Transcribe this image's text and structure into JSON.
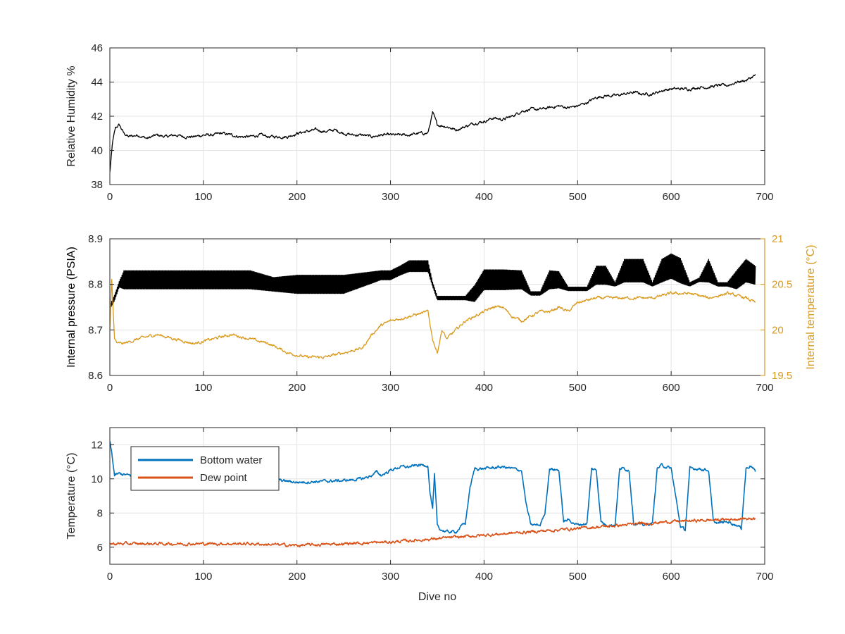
{
  "chart_data": [
    {
      "type": "line",
      "title": "",
      "xlabel": "",
      "ylabel": "Relative Humidity %",
      "xlim": [
        0,
        700
      ],
      "ylim": [
        38,
        46
      ],
      "xticks": [
        "0",
        "100",
        "200",
        "300",
        "400",
        "500",
        "600",
        "700"
      ],
      "yticks": [
        "38",
        "40",
        "42",
        "44",
        "46"
      ],
      "grid": true,
      "series": [
        {
          "color": "#000000",
          "x": [
            0,
            3,
            6,
            10,
            15,
            20,
            30,
            40,
            50,
            60,
            70,
            80,
            90,
            100,
            110,
            120,
            130,
            140,
            150,
            160,
            170,
            180,
            190,
            200,
            210,
            220,
            230,
            240,
            250,
            260,
            270,
            280,
            290,
            300,
            310,
            320,
            330,
            340,
            345,
            350,
            360,
            370,
            380,
            390,
            400,
            410,
            420,
            430,
            440,
            450,
            460,
            470,
            480,
            490,
            500,
            510,
            520,
            530,
            540,
            550,
            560,
            570,
            580,
            590,
            600,
            610,
            620,
            630,
            640,
            650,
            660,
            670,
            680,
            690
          ],
          "values": [
            38.7,
            40.5,
            41.3,
            41.5,
            41.0,
            40.8,
            40.9,
            40.7,
            40.9,
            40.8,
            40.9,
            40.8,
            40.8,
            40.9,
            40.9,
            41.0,
            40.9,
            40.8,
            40.8,
            40.9,
            40.8,
            40.8,
            40.8,
            41.0,
            41.1,
            41.2,
            41.1,
            41.2,
            41.0,
            40.9,
            40.9,
            40.8,
            40.9,
            40.9,
            40.9,
            40.9,
            41.0,
            41.0,
            42.2,
            41.5,
            41.4,
            41.2,
            41.4,
            41.6,
            41.7,
            41.9,
            41.8,
            42.0,
            42.3,
            42.4,
            42.4,
            42.5,
            42.6,
            42.5,
            42.6,
            42.8,
            43.1,
            43.2,
            43.2,
            43.3,
            43.4,
            43.3,
            43.3,
            43.5,
            43.6,
            43.6,
            43.6,
            43.7,
            43.7,
            43.8,
            43.8,
            44.0,
            44.1,
            44.4
          ]
        }
      ]
    },
    {
      "type": "line",
      "title": "",
      "xlabel": "",
      "ylabel": "Internal pressure (PSIA)",
      "y2label": "Internal temperature (°C)",
      "xlim": [
        0,
        700
      ],
      "ylim": [
        8.6,
        8.9
      ],
      "y2lim": [
        19.5,
        21
      ],
      "xticks": [
        "0",
        "100",
        "200",
        "300",
        "400",
        "500",
        "600",
        "700"
      ],
      "yticks": [
        "8.6",
        "8.7",
        "8.8",
        "8.9"
      ],
      "y2ticks": [
        "19.5",
        "20",
        "20.5",
        "21"
      ],
      "right_axis_color": "#D99A1E",
      "grid": true,
      "series": [
        {
          "axis": "left",
          "color": "#000000",
          "x": [
            0,
            5,
            10,
            15,
            20,
            50,
            100,
            150,
            175,
            200,
            250,
            270,
            290,
            300,
            310,
            320,
            340,
            345,
            350,
            360,
            380,
            390,
            400,
            420,
            440,
            450,
            460,
            470,
            480,
            490,
            500,
            510,
            520,
            530,
            540,
            550,
            560,
            570,
            580,
            590,
            600,
            610,
            620,
            630,
            640,
            650,
            660,
            670,
            680,
            690
          ],
          "values": [
            8.75,
            8.77,
            8.8,
            8.81,
            8.81,
            8.81,
            8.81,
            8.81,
            8.8,
            8.8,
            8.8,
            8.81,
            8.82,
            8.82,
            8.83,
            8.84,
            8.84,
            8.8,
            8.77,
            8.77,
            8.77,
            8.78,
            8.81,
            8.81,
            8.81,
            8.78,
            8.78,
            8.81,
            8.81,
            8.79,
            8.79,
            8.79,
            8.82,
            8.82,
            8.8,
            8.83,
            8.83,
            8.83,
            8.8,
            8.83,
            8.84,
            8.83,
            8.8,
            8.81,
            8.83,
            8.8,
            8.8,
            8.81,
            8.83,
            8.82
          ],
          "oscillation": [
            0.004,
            0.006,
            0.006,
            0.02,
            0.02,
            0.02,
            0.02,
            0.02,
            0.015,
            0.02,
            0.02,
            0.015,
            0.01,
            0.01,
            0.01,
            0.012,
            0.012,
            0.005,
            0.004,
            0.004,
            0.004,
            0.018,
            0.022,
            0.022,
            0.02,
            0.004,
            0.004,
            0.02,
            0.018,
            0.004,
            0.004,
            0.004,
            0.02,
            0.02,
            0.004,
            0.025,
            0.025,
            0.025,
            0.004,
            0.025,
            0.027,
            0.027,
            0.004,
            0.004,
            0.025,
            0.004,
            0.004,
            0.02,
            0.025,
            0.02
          ]
        },
        {
          "axis": "right",
          "color": "#D99A1E",
          "x": [
            0,
            2,
            5,
            8,
            15,
            30,
            50,
            70,
            90,
            110,
            130,
            150,
            170,
            180,
            190,
            210,
            230,
            250,
            270,
            280,
            290,
            300,
            320,
            340,
            345,
            350,
            355,
            360,
            370,
            380,
            390,
            400,
            410,
            420,
            430,
            440,
            450,
            460,
            470,
            480,
            490,
            500,
            520,
            540,
            560,
            580,
            600,
            620,
            640,
            660,
            680,
            690
          ],
          "values": [
            20.0,
            20.55,
            19.9,
            19.85,
            19.85,
            19.9,
            19.95,
            19.9,
            19.85,
            19.9,
            19.95,
            19.9,
            19.85,
            19.8,
            19.75,
            19.7,
            19.7,
            19.75,
            19.8,
            19.95,
            20.05,
            20.1,
            20.15,
            20.2,
            19.9,
            19.75,
            20.0,
            19.9,
            20.0,
            20.1,
            20.15,
            20.2,
            20.25,
            20.25,
            20.15,
            20.1,
            20.15,
            20.2,
            20.2,
            20.25,
            20.2,
            20.3,
            20.35,
            20.35,
            20.35,
            20.35,
            20.4,
            20.4,
            20.35,
            20.4,
            20.35,
            20.3
          ]
        }
      ]
    },
    {
      "type": "line",
      "title": "",
      "xlabel": "Dive no",
      "ylabel": "Temperature (°C)",
      "xlim": [
        0,
        700
      ],
      "ylim": [
        5,
        13
      ],
      "xticks": [
        "0",
        "100",
        "200",
        "300",
        "400",
        "500",
        "600",
        "700"
      ],
      "yticks": [
        "6",
        "8",
        "10",
        "12"
      ],
      "legend": "top-left",
      "grid": true,
      "series": [
        {
          "name": "Bottom water",
          "color": "#0072BD",
          "x": [
            0,
            2,
            5,
            10,
            20,
            40,
            60,
            100,
            150,
            200,
            250,
            270,
            280,
            285,
            290,
            300,
            310,
            320,
            330,
            340,
            342,
            345,
            347,
            350,
            352,
            355,
            360,
            370,
            375,
            380,
            385,
            390,
            395,
            400,
            420,
            440,
            445,
            450,
            460,
            465,
            470,
            480,
            485,
            490,
            500,
            510,
            515,
            520,
            525,
            530,
            540,
            545,
            550,
            555,
            560,
            570,
            580,
            585,
            590,
            595,
            600,
            610,
            615,
            620,
            630,
            640,
            645,
            650,
            660,
            670,
            675,
            680,
            685,
            690
          ],
          "values": [
            12.2,
            11.5,
            10.2,
            10.3,
            10.2,
            10.2,
            10.2,
            10.2,
            10.1,
            9.8,
            9.9,
            10.0,
            10.2,
            10.4,
            10.2,
            10.5,
            10.7,
            10.7,
            10.8,
            10.8,
            9.3,
            8.2,
            10.2,
            7.3,
            7.1,
            7.0,
            6.9,
            6.9,
            7.2,
            7.4,
            9.5,
            10.6,
            10.6,
            10.6,
            10.7,
            10.5,
            8.5,
            7.3,
            7.3,
            8.0,
            10.6,
            10.5,
            7.5,
            7.6,
            7.3,
            7.4,
            10.6,
            10.5,
            7.5,
            7.3,
            7.3,
            10.6,
            10.6,
            10.5,
            7.4,
            7.3,
            7.4,
            10.6,
            10.8,
            10.7,
            10.6,
            7.2,
            7.0,
            10.6,
            10.6,
            10.5,
            7.5,
            7.4,
            7.5,
            7.3,
            7.1,
            10.6,
            10.8,
            10.4
          ]
        },
        {
          "name": "Dew point",
          "color": "#D95319",
          "x": [
            0,
            50,
            100,
            150,
            200,
            250,
            300,
            350,
            400,
            450,
            500,
            550,
            600,
            650,
            690
          ],
          "values": [
            6.2,
            6.2,
            6.2,
            6.2,
            6.1,
            6.2,
            6.3,
            6.5,
            6.7,
            6.9,
            7.1,
            7.3,
            7.5,
            7.6,
            7.7
          ]
        }
      ]
    }
  ]
}
